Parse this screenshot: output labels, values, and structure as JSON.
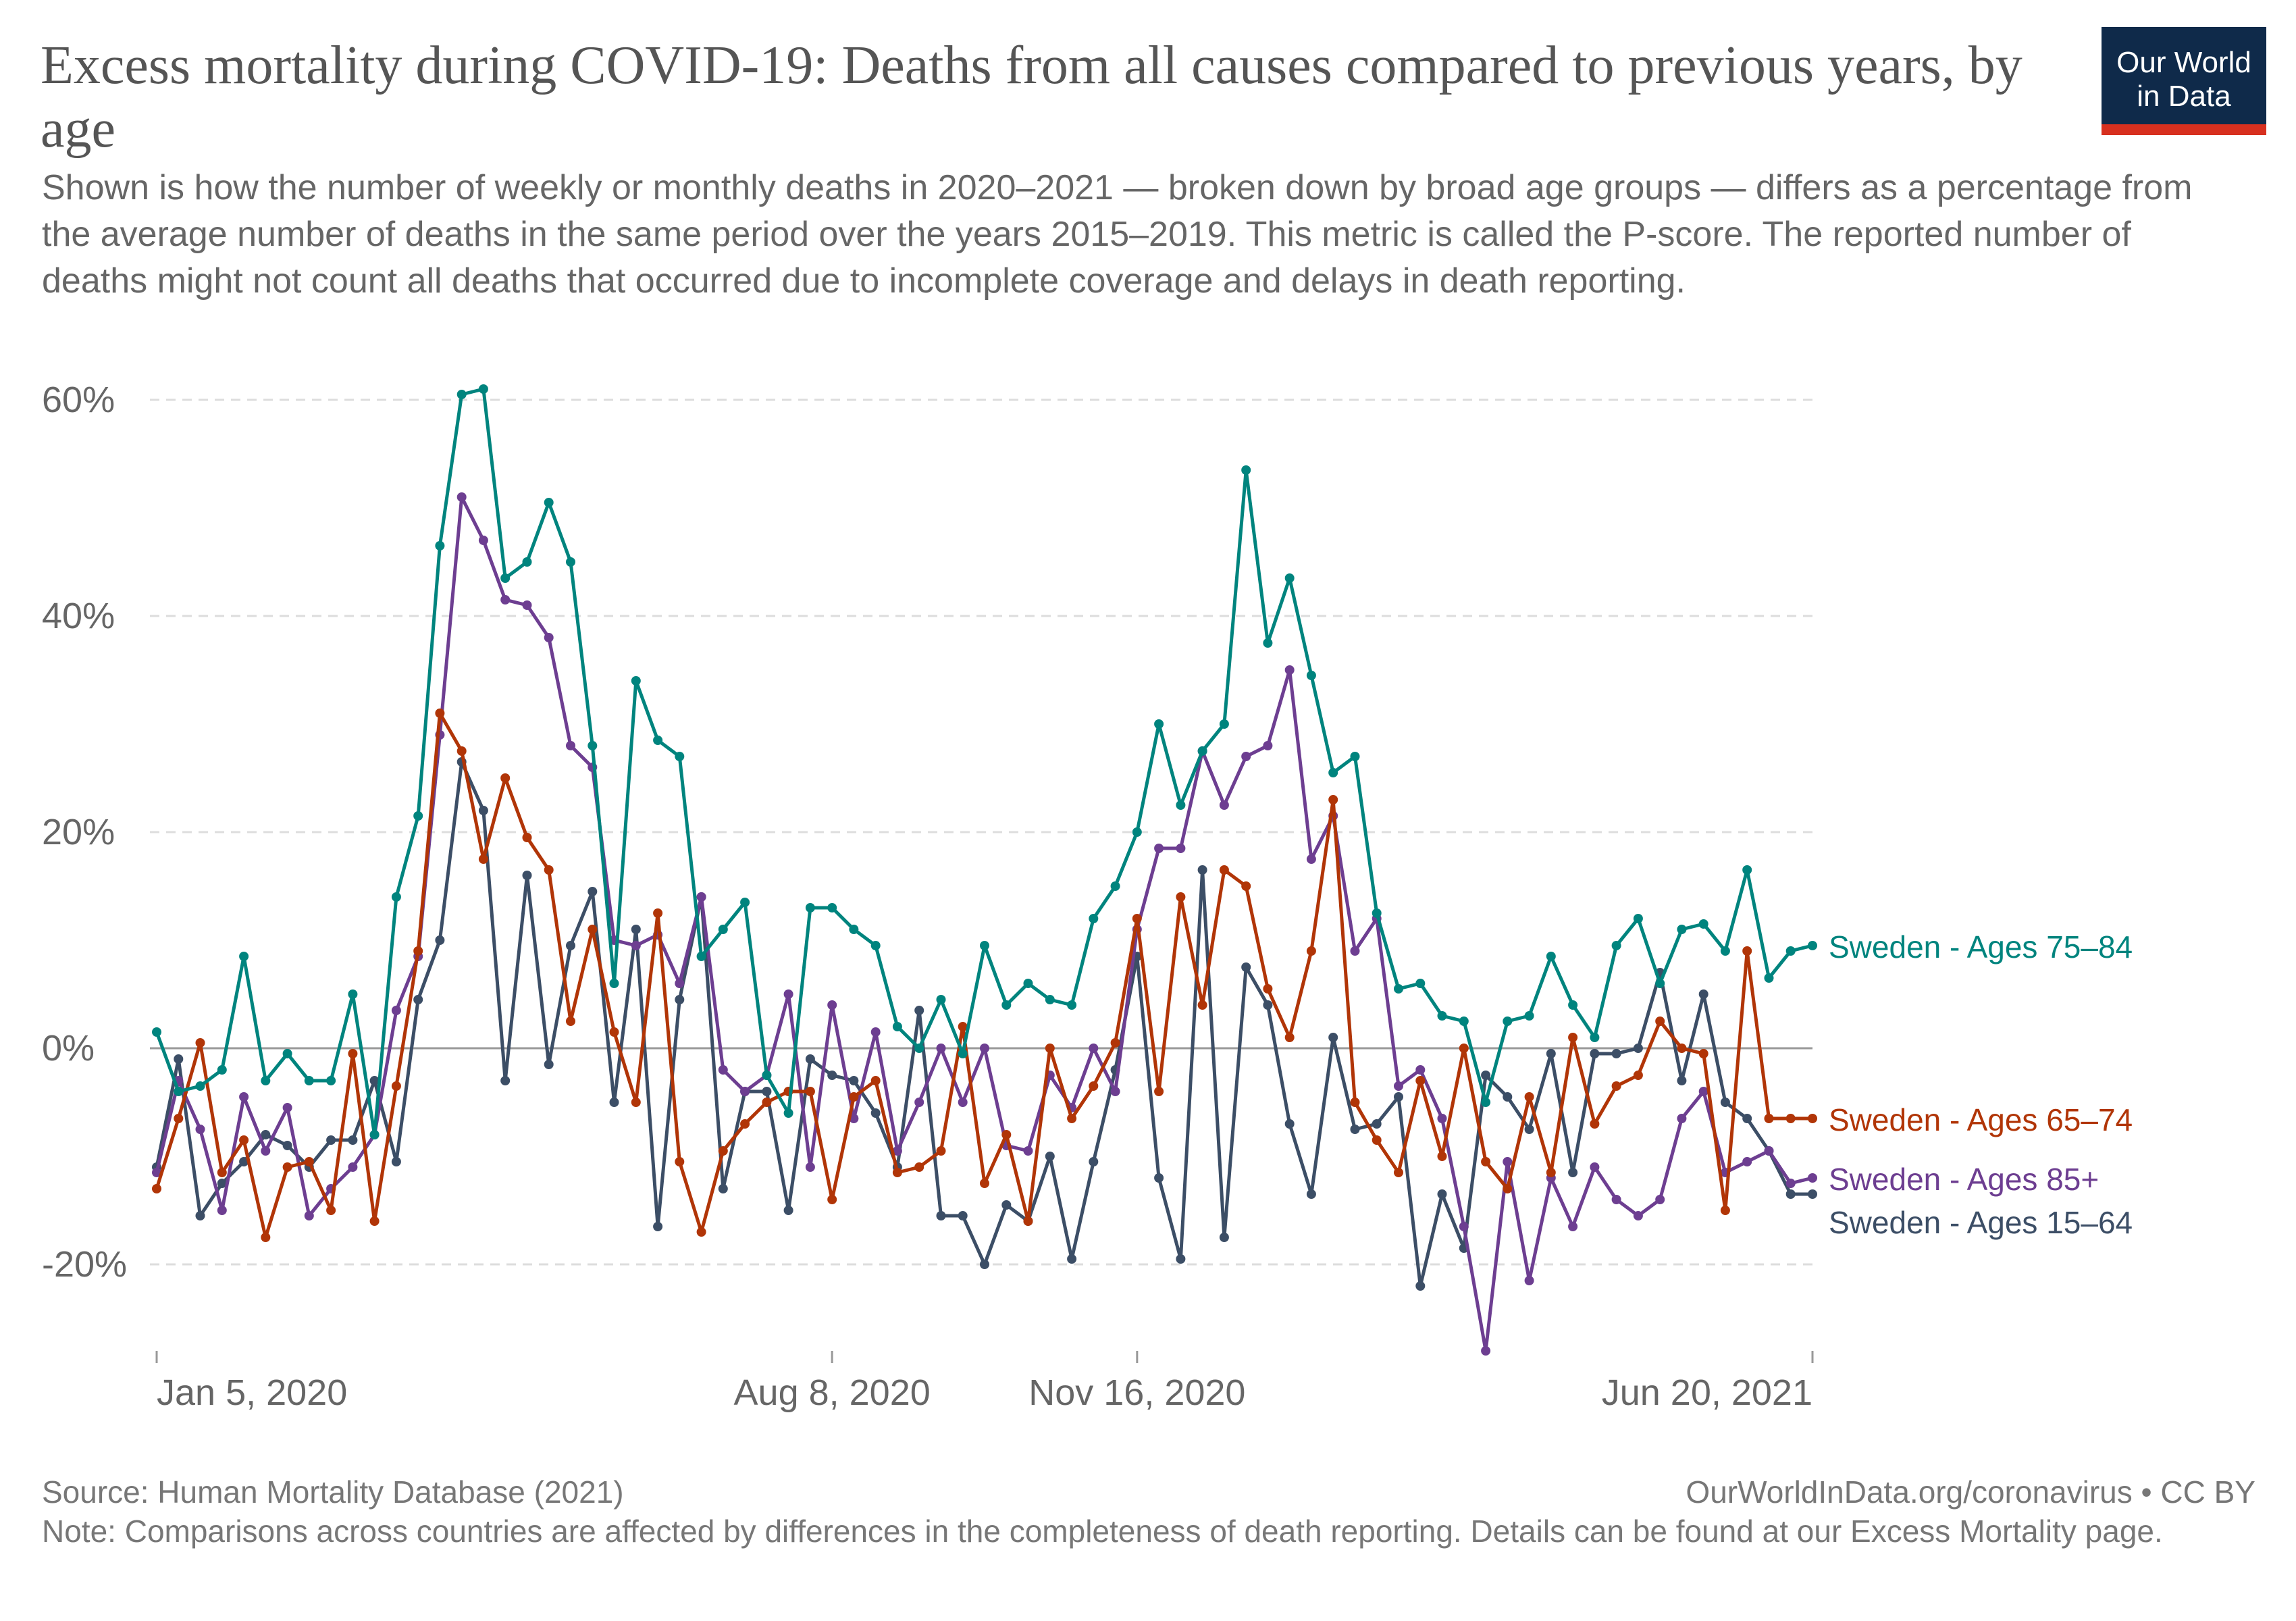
{
  "header": {
    "title": "Excess mortality during COVID-19: Deaths from all causes compared to previous years, by age",
    "subtitle": "Shown is how the number of weekly or monthly deaths in 2020–2021 — broken down by broad age groups — differs as a percentage from the average number of deaths in the same period over the years 2015–2019. This metric is called the P-score. The reported number of deaths might not count all deaths that occurred due to incomplete coverage and delays in death reporting."
  },
  "logo": {
    "line1": "Our World",
    "line2": "in Data"
  },
  "footer": {
    "source": "Source: Human Mortality Database (2021)",
    "license": "OurWorldInData.org/coronavirus • CC BY",
    "note": "Note: Comparisons across countries are affected by differences in the completeness of death reporting. Details can be found at our Excess Mortality page."
  },
  "chart_data": {
    "type": "line",
    "title": "Excess mortality during COVID-19: Deaths from all causes compared to previous years, by age",
    "ylim": [
      -29,
      61
    ],
    "y_ticks": [
      {
        "value": 60,
        "label": "60%"
      },
      {
        "value": 40,
        "label": "40%"
      },
      {
        "value": 20,
        "label": "20%"
      },
      {
        "value": 0,
        "label": "0%"
      },
      {
        "value": -20,
        "label": "-20%"
      }
    ],
    "x_ticks": [
      {
        "index": 0,
        "label": "Jan 5, 2020"
      },
      {
        "index": 31,
        "label": "Aug 8, 2020"
      },
      {
        "index": 45,
        "label": "Nov 16, 2020"
      },
      {
        "index": 76,
        "label": "Jun 20, 2021"
      }
    ],
    "grid": true,
    "legend": "right",
    "x_count": 77,
    "series": [
      {
        "name": "Sweden - Ages 75–84",
        "color": "#00847e",
        "values": [
          1.5,
          -4,
          -3.5,
          -2,
          8.5,
          -3,
          -0.5,
          -3,
          -3,
          5,
          -8,
          14,
          21.5,
          46.5,
          60.5,
          61,
          43.5,
          45,
          50.5,
          45,
          28,
          6,
          34,
          28.5,
          27,
          8.5,
          11,
          13.5,
          -2.5,
          -6,
          13,
          13,
          11,
          9.5,
          2,
          0,
          4.5,
          -0.5,
          9.5,
          4,
          6,
          4.5,
          4,
          12,
          15,
          20,
          30,
          22.5,
          27.5,
          30,
          53.5,
          37.5,
          43.5,
          34.5,
          25.5,
          27,
          12.5,
          5.5,
          6,
          3,
          2.5,
          -5,
          2.5,
          3,
          8.5,
          4,
          1,
          9.5,
          12,
          6,
          11,
          11.5,
          9,
          16.5,
          6.5,
          9,
          9.5
        ]
      },
      {
        "name": "Sweden - Ages 65–74",
        "color": "#b13507",
        "values": [
          -13,
          -6.5,
          0.5,
          -11.5,
          -8.5,
          -17.5,
          -11,
          -10.5,
          -15,
          -0.5,
          -16,
          -3.5,
          9,
          31,
          27.5,
          17.5,
          25,
          19.5,
          16.5,
          2.5,
          11,
          1.5,
          -5,
          12.5,
          -10.5,
          -17,
          -9.5,
          -7,
          -5,
          -4,
          -4,
          -14,
          -4.5,
          -3,
          -11.5,
          -11,
          -9.5,
          2,
          -12.5,
          -8,
          -16,
          0,
          -6.5,
          -3.5,
          0.5,
          12,
          -4,
          14,
          4,
          16.5,
          15,
          5.5,
          1,
          9,
          23,
          -5,
          -8.5,
          -11.5,
          -3,
          -10,
          0,
          -10.5,
          -13,
          -4.5,
          -11.5,
          1,
          -7,
          -3.5,
          -2.5,
          2.5,
          0,
          -0.5,
          -15,
          9,
          -6.5,
          -6.5,
          -6.5
        ]
      },
      {
        "name": "Sweden - Ages 85+",
        "color": "#6d3e91",
        "values": [
          -11.5,
          -3,
          -7.5,
          -15,
          -4.5,
          -9.5,
          -5.5,
          -15.5,
          -13,
          -11,
          -8,
          3.5,
          8.5,
          29,
          51,
          47,
          41.5,
          41,
          38,
          28,
          26,
          10,
          9.5,
          10.5,
          6,
          14,
          -2,
          -4,
          -2.5,
          5,
          -11,
          4,
          -6.5,
          1.5,
          -9.5,
          -5,
          0,
          -5,
          0,
          -9,
          -9.5,
          -2.5,
          -5.5,
          0,
          -4,
          11,
          18.5,
          18.5,
          27.5,
          22.5,
          27,
          28,
          35,
          17.5,
          21.5,
          9,
          12,
          -3.5,
          -2,
          -6.5,
          -16.5,
          -28,
          -10.5,
          -21.5,
          -12,
          -16.5,
          -11,
          -14,
          -15.5,
          -14,
          -6.5,
          -4,
          -11.5,
          -10.5,
          -9.5,
          -12.5,
          -12
        ]
      },
      {
        "name": "Sweden - Ages 15–64",
        "color": "#3c4e66",
        "values": [
          -11,
          -1,
          -15.5,
          -12.5,
          -10.5,
          -8,
          -9,
          -11,
          -8.5,
          -8.5,
          -3,
          -10.5,
          4.5,
          10,
          26.5,
          22,
          -3,
          16,
          -1.5,
          9.5,
          14.5,
          -5,
          11,
          -16.5,
          4.5,
          14,
          -13,
          -4,
          -4,
          -15,
          -1,
          -2.5,
          -3,
          -6,
          -11,
          3.5,
          -15.5,
          -15.5,
          -20,
          -14.5,
          -16,
          -10,
          -19.5,
          -10.5,
          -2,
          8.5,
          -12,
          -19.5,
          16.5,
          -17.5,
          7.5,
          4,
          -7,
          -13.5,
          1,
          -7.5,
          -7,
          -4.5,
          -22,
          -13.5,
          -18.5,
          -2.5,
          -4.5,
          -7.5,
          -0.5,
          -11.5,
          -0.5,
          -0.5,
          0,
          7,
          -3,
          5,
          -5,
          -6.5,
          -9.5,
          -13.5,
          -13.5
        ]
      }
    ]
  }
}
